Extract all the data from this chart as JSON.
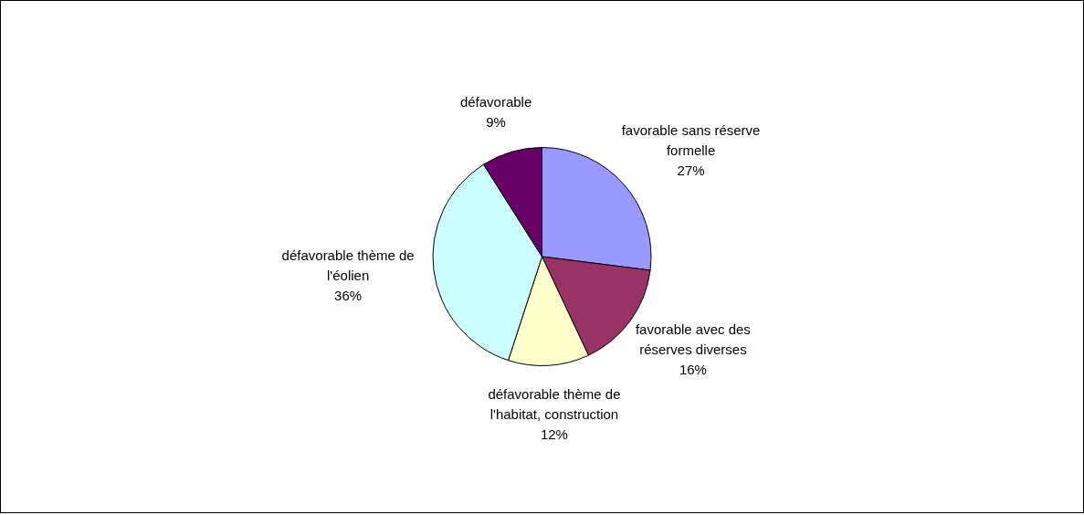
{
  "chart_data": {
    "type": "pie",
    "categories": [
      "favorable sans réserve formelle",
      "favorable avec des réserves diverses",
      "défavorable thème de l'habitat, construction",
      "défavorable thème de l'éolien",
      "défavorable"
    ],
    "values": [
      27,
      16,
      12,
      36,
      9
    ],
    "colors": [
      "#9999ff",
      "#993366",
      "#ffffcc",
      "#ccffff",
      "#660066"
    ],
    "value_labels": [
      "27%",
      "16%",
      "12%",
      "36%",
      "9%"
    ],
    "legend": false
  }
}
